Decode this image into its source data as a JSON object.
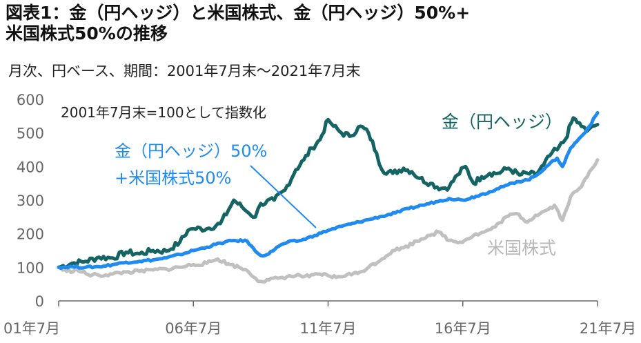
{
  "title": {
    "line1": "図表1：金（円ヘッジ）と米国株式、金（円ヘッジ）50%+",
    "line2": "米国株式50%の推移"
  },
  "subtitle": "月次、円ベース、期間：2001年7月末～2021年7月末",
  "note": "2001年7月末=100として指数化",
  "colors": {
    "gold": "#146464",
    "mix": "#1f8bf0",
    "us": "#c0c0c0",
    "axis": "#666666"
  },
  "chart_data": {
    "type": "line",
    "ylim": [
      0,
      600
    ],
    "yticks": [
      "0",
      "100",
      "200",
      "300",
      "400",
      "500",
      "600"
    ],
    "xlim": [
      2001.5,
      2021.5
    ],
    "xticks": [
      {
        "x": 2001.5,
        "label": "01年7月"
      },
      {
        "x": 2006.5,
        "label": "06年7月"
      },
      {
        "x": 2011.5,
        "label": "11年7月"
      },
      {
        "x": 2016.5,
        "label": "16年7月"
      },
      {
        "x": 2021.5,
        "label": "21年7月"
      }
    ],
    "grid": false,
    "series": [
      {
        "name": "金（円ヘッジ）",
        "color": "#146464",
        "points": [
          [
            2001.5,
            100
          ],
          [
            2002.0,
            112
          ],
          [
            2002.5,
            118
          ],
          [
            2003.0,
            130
          ],
          [
            2003.5,
            128
          ],
          [
            2004.0,
            145
          ],
          [
            2004.5,
            140
          ],
          [
            2005.0,
            150
          ],
          [
            2005.5,
            148
          ],
          [
            2006.0,
            175
          ],
          [
            2006.3,
            210
          ],
          [
            2006.5,
            215
          ],
          [
            2007.0,
            215
          ],
          [
            2007.5,
            230
          ],
          [
            2007.8,
            270
          ],
          [
            2008.0,
            300
          ],
          [
            2008.3,
            280
          ],
          [
            2008.5,
            265
          ],
          [
            2008.8,
            250
          ],
          [
            2009.0,
            290
          ],
          [
            2009.5,
            300
          ],
          [
            2009.9,
            330
          ],
          [
            2010.3,
            390
          ],
          [
            2010.6,
            420
          ],
          [
            2010.9,
            455
          ],
          [
            2011.2,
            480
          ],
          [
            2011.5,
            540
          ],
          [
            2011.7,
            520
          ],
          [
            2012.0,
            500
          ],
          [
            2012.3,
            490
          ],
          [
            2012.7,
            520
          ],
          [
            2013.0,
            500
          ],
          [
            2013.3,
            440
          ],
          [
            2013.5,
            390
          ],
          [
            2013.9,
            380
          ],
          [
            2014.3,
            395
          ],
          [
            2014.6,
            385
          ],
          [
            2014.9,
            365
          ],
          [
            2015.3,
            350
          ],
          [
            2015.7,
            335
          ],
          [
            2016.0,
            340
          ],
          [
            2016.3,
            375
          ],
          [
            2016.6,
            400
          ],
          [
            2016.9,
            350
          ],
          [
            2017.2,
            370
          ],
          [
            2017.5,
            380
          ],
          [
            2017.8,
            380
          ],
          [
            2018.2,
            395
          ],
          [
            2018.6,
            375
          ],
          [
            2018.9,
            380
          ],
          [
            2019.2,
            375
          ],
          [
            2019.5,
            405
          ],
          [
            2019.8,
            440
          ],
          [
            2020.0,
            450
          ],
          [
            2020.3,
            480
          ],
          [
            2020.6,
            545
          ],
          [
            2020.9,
            520
          ],
          [
            2021.1,
            505
          ],
          [
            2021.3,
            520
          ],
          [
            2021.5,
            525
          ]
        ]
      },
      {
        "name": "金（円ヘッジ）50%+米国株式50%",
        "color": "#1f8bf0",
        "points": [
          [
            2001.5,
            100
          ],
          [
            2002.0,
            102
          ],
          [
            2002.5,
            100
          ],
          [
            2003.0,
            102
          ],
          [
            2003.5,
            108
          ],
          [
            2004.0,
            115
          ],
          [
            2004.5,
            118
          ],
          [
            2005.0,
            122
          ],
          [
            2005.5,
            128
          ],
          [
            2006.0,
            138
          ],
          [
            2006.5,
            150
          ],
          [
            2007.0,
            160
          ],
          [
            2007.5,
            172
          ],
          [
            2008.0,
            180
          ],
          [
            2008.5,
            178
          ],
          [
            2008.8,
            148
          ],
          [
            2009.0,
            135
          ],
          [
            2009.3,
            140
          ],
          [
            2009.6,
            160
          ],
          [
            2010.0,
            175
          ],
          [
            2010.5,
            180
          ],
          [
            2011.0,
            195
          ],
          [
            2011.5,
            210
          ],
          [
            2012.0,
            222
          ],
          [
            2012.5,
            232
          ],
          [
            2013.0,
            242
          ],
          [
            2013.5,
            252
          ],
          [
            2014.0,
            262
          ],
          [
            2014.5,
            275
          ],
          [
            2015.0,
            285
          ],
          [
            2015.5,
            295
          ],
          [
            2016.0,
            305
          ],
          [
            2016.5,
            300
          ],
          [
            2017.0,
            312
          ],
          [
            2017.5,
            325
          ],
          [
            2018.0,
            340
          ],
          [
            2018.5,
            355
          ],
          [
            2018.9,
            360
          ],
          [
            2019.2,
            372
          ],
          [
            2019.6,
            400
          ],
          [
            2020.0,
            425
          ],
          [
            2020.2,
            400
          ],
          [
            2020.5,
            455
          ],
          [
            2020.9,
            490
          ],
          [
            2021.2,
            520
          ],
          [
            2021.5,
            560
          ]
        ]
      },
      {
        "name": "米国株式",
        "color": "#c0c0c0",
        "points": [
          [
            2001.5,
            100
          ],
          [
            2001.8,
            88
          ],
          [
            2002.2,
            92
          ],
          [
            2002.6,
            78
          ],
          [
            2003.0,
            76
          ],
          [
            2003.5,
            80
          ],
          [
            2004.0,
            86
          ],
          [
            2004.5,
            88
          ],
          [
            2005.0,
            92
          ],
          [
            2005.5,
            95
          ],
          [
            2006.0,
            100
          ],
          [
            2006.5,
            108
          ],
          [
            2007.0,
            112
          ],
          [
            2007.4,
            125
          ],
          [
            2007.8,
            110
          ],
          [
            2008.2,
            100
          ],
          [
            2008.5,
            90
          ],
          [
            2008.8,
            68
          ],
          [
            2009.0,
            58
          ],
          [
            2009.3,
            62
          ],
          [
            2009.8,
            70
          ],
          [
            2010.3,
            75
          ],
          [
            2010.8,
            72
          ],
          [
            2011.2,
            80
          ],
          [
            2011.5,
            75
          ],
          [
            2011.8,
            70
          ],
          [
            2012.2,
            78
          ],
          [
            2012.6,
            82
          ],
          [
            2013.0,
            100
          ],
          [
            2013.5,
            125
          ],
          [
            2013.9,
            150
          ],
          [
            2014.3,
            158
          ],
          [
            2014.8,
            178
          ],
          [
            2015.2,
            195
          ],
          [
            2015.6,
            205
          ],
          [
            2016.0,
            180
          ],
          [
            2016.4,
            175
          ],
          [
            2016.9,
            195
          ],
          [
            2017.3,
            205
          ],
          [
            2017.7,
            220
          ],
          [
            2018.1,
            250
          ],
          [
            2018.5,
            260
          ],
          [
            2018.9,
            235
          ],
          [
            2019.2,
            255
          ],
          [
            2019.6,
            270
          ],
          [
            2019.9,
            285
          ],
          [
            2020.2,
            240
          ],
          [
            2020.5,
            310
          ],
          [
            2020.9,
            340
          ],
          [
            2021.2,
            385
          ],
          [
            2021.5,
            420
          ]
        ]
      }
    ],
    "annotations": [
      {
        "text": "金（円ヘッジ）",
        "series": 0
      },
      {
        "text": "金（円ヘッジ）50%",
        "series": 1
      },
      {
        "text": "+米国株式50%",
        "series": 1
      },
      {
        "text": "米国株式",
        "series": 2
      }
    ]
  }
}
